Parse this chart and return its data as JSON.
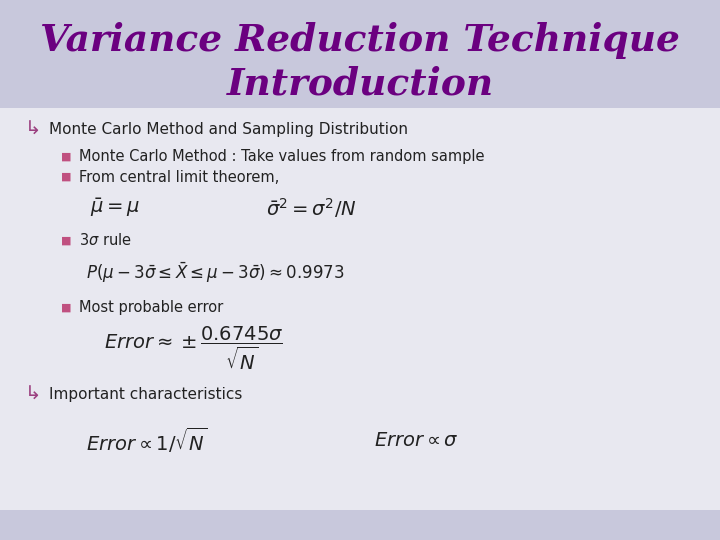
{
  "title_line1": "Variance Reduction Technique",
  "title_line2": "Introduction",
  "title_color": "#6B0080",
  "bg_color": "#E8E8F0",
  "header_bg": "#C8C8DC",
  "body_text_color": "#222222",
  "bullet_color_main": "#9B4080",
  "bullet_color_sub": "#C05080",
  "main_bullet1": "Monte Carlo Method and Sampling Distribution",
  "sub_bullet1": "Monte Carlo Method : Take values from random sample",
  "sub_bullet2": "From central limit theorem,",
  "sub_bullet3_text": "rule",
  "sub_bullet4": "Most probable error",
  "main_bullet2": "Important characteristics",
  "font_family": "DejaVu Sans"
}
